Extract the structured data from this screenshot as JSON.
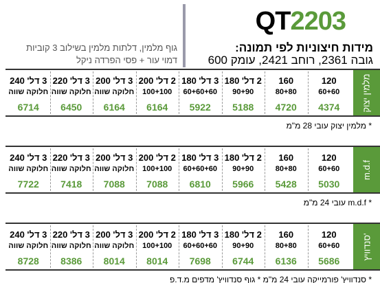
{
  "header": {
    "title_prefix": "QT",
    "title_number": "2203",
    "dimensions_label": "מידות חיצוניות לפי תמונה:",
    "dimensions": "גובה 2361, רוחב 2421, עומק 600",
    "materials_line1": "גוף מלמין, דלתות מלמין בשילוב 3 קוביות",
    "materials_line2": "דמוי עור + פסי הפרדה ניקל"
  },
  "columns": [
    {
      "line1": "120",
      "line2": "60+60"
    },
    {
      "line1": "160",
      "line2": "80+80"
    },
    {
      "line1": "2 דל' 180",
      "line2": "90+90"
    },
    {
      "line1": "3 דל' 180",
      "line2": "60+60+60"
    },
    {
      "line1": "2 דל' 200",
      "line2": "100+100"
    },
    {
      "line1": "3 דל' 200",
      "line2": "חלוקה שווה"
    },
    {
      "line1": "3 דל' 220",
      "line2": "חלוקה שווה"
    },
    {
      "line1": "3 דל' 240",
      "line2": "חלוקה שווה"
    }
  ],
  "tables": [
    {
      "label": "מלמין יצוק",
      "prices": [
        4374,
        4720,
        5188,
        5922,
        6164,
        6164,
        6450,
        6714
      ],
      "note": "* מלמין יצוק עובי 28 מ\"מ"
    },
    {
      "label": "m.d.f",
      "prices": [
        5030,
        5428,
        5966,
        6810,
        7088,
        7088,
        7418,
        7722
      ],
      "note": "* m.d.f עובי 24 מ\"מ"
    },
    {
      "label": "סנדוויץ'",
      "prices": [
        5686,
        6136,
        6744,
        7698,
        8014,
        8014,
        8386,
        8728
      ],
      "note": "* סנדוויץ' פורמייקה עובי 24 מ\"מ  * גוף סנדוויץ' מדפים מ.ד.פ"
    }
  ]
}
